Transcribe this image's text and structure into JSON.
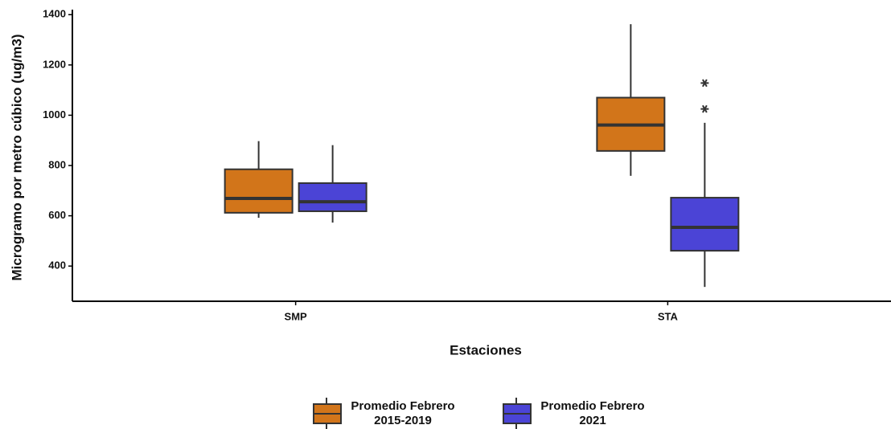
{
  "chart_data": {
    "type": "box",
    "x_label": "Estaciones",
    "y_label": "Microgramo por metro cúbico (ug/m3)",
    "categories": [
      "SMP",
      "STA"
    ],
    "ylim": [
      260,
      1420
    ],
    "yticks": [
      400,
      600,
      800,
      1000,
      1200,
      1400
    ],
    "grid": false,
    "legend": "bottom",
    "series": [
      {
        "name": "Promedio Febrero 2015-2019",
        "color": "#d2751a",
        "boxes": [
          {
            "min": 592,
            "q1": 612,
            "median": 669,
            "q3": 785,
            "max": 897,
            "outliers": []
          },
          {
            "min": 759,
            "q1": 858,
            "median": 961,
            "q3": 1070,
            "max": 1362,
            "outliers": []
          }
        ]
      },
      {
        "name": "Promedio Febrero 2021",
        "color": "#4b44d6",
        "boxes": [
          {
            "min": 573,
            "q1": 618,
            "median": 656,
            "q3": 730,
            "max": 881,
            "outliers": []
          },
          {
            "min": 317,
            "q1": 461,
            "median": 554,
            "q3": 672,
            "max": 970,
            "outliers": [
              1025,
              1128
            ]
          }
        ]
      }
    ]
  }
}
